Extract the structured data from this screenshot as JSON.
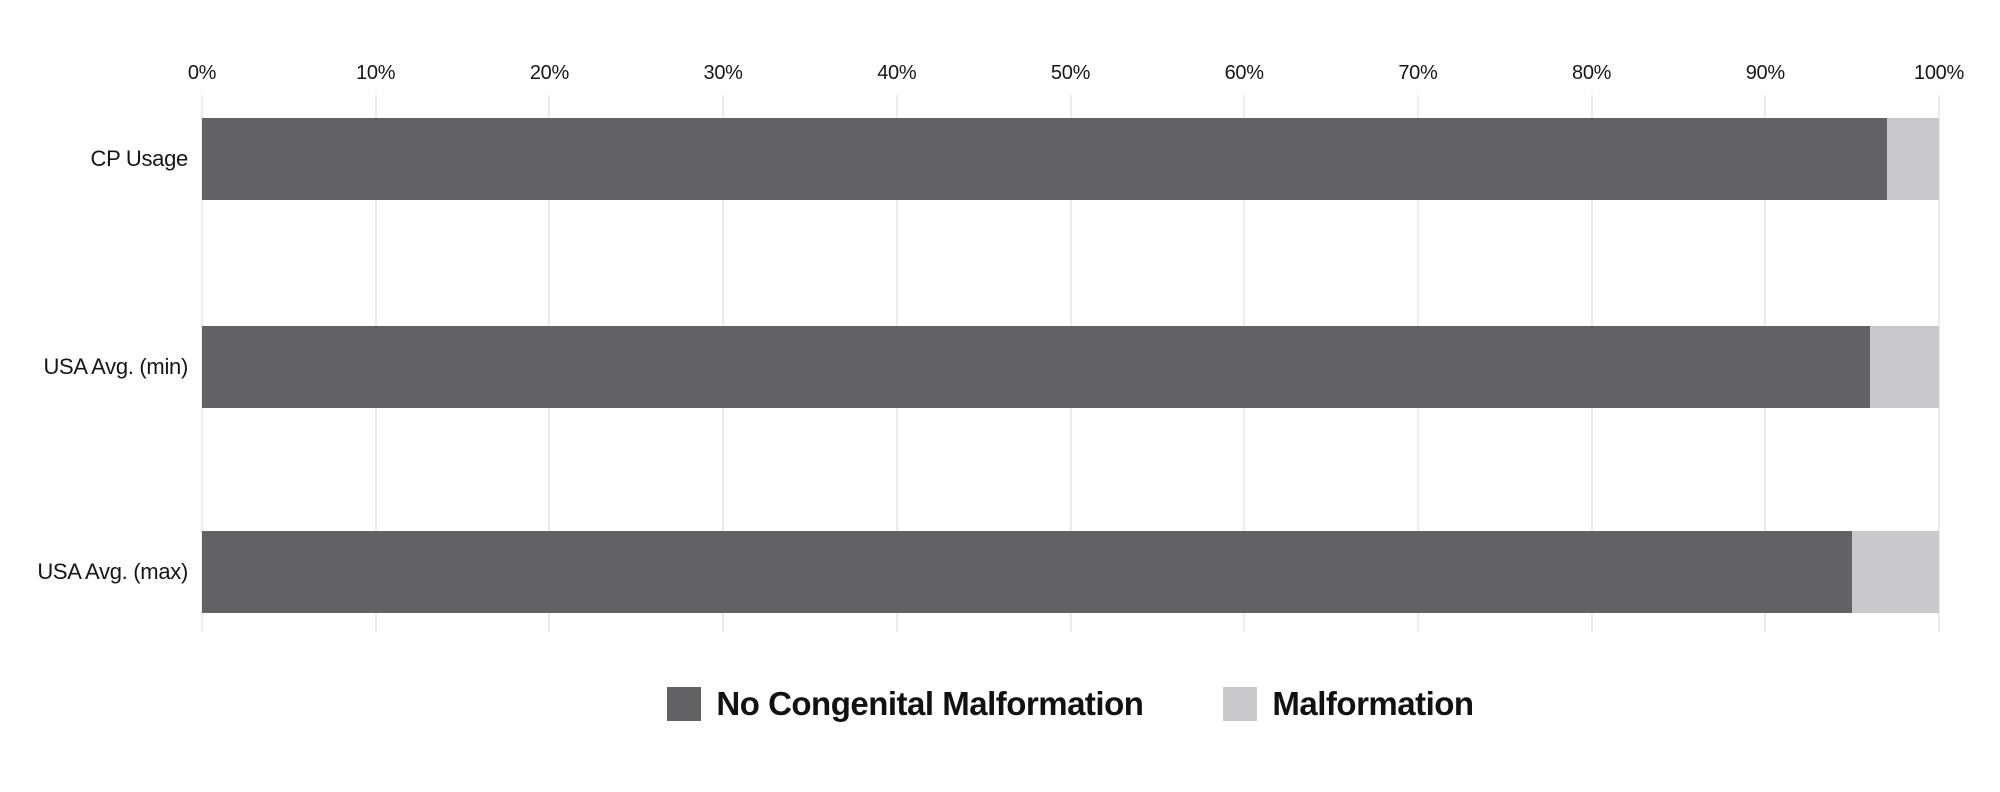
{
  "chart_data": {
    "type": "bar",
    "orientation": "horizontal",
    "stacked": true,
    "stacked_total": 100,
    "title": "",
    "xlabel": "",
    "ylabel": "",
    "categories": [
      "CP Usage",
      "USA Avg. (min)",
      "USA Avg. (max)"
    ],
    "series": [
      {
        "name": "No Congenital Malformation",
        "color": "#626264",
        "values": [
          97,
          96,
          95
        ]
      },
      {
        "name": "Malformation",
        "color": "#c9c9cb",
        "values": [
          3,
          4,
          5
        ]
      }
    ],
    "x_axis": {
      "position": "top",
      "min": 0,
      "max": 100,
      "tick_step": 10,
      "unit": "%",
      "tick_labels": [
        "0%",
        "10%",
        "20%",
        "30%",
        "40%",
        "50%",
        "60%",
        "70%",
        "80%",
        "90%",
        "100%"
      ]
    },
    "grid": {
      "vertical": true,
      "horizontal": false,
      "color": "#ececee"
    },
    "legend": {
      "position": "bottom",
      "entries": [
        {
          "label": "No Congenital Malformation",
          "color": "#626264"
        },
        {
          "label": "Malformation",
          "color": "#c9c9cb"
        }
      ]
    },
    "background": "#ffffff"
  }
}
